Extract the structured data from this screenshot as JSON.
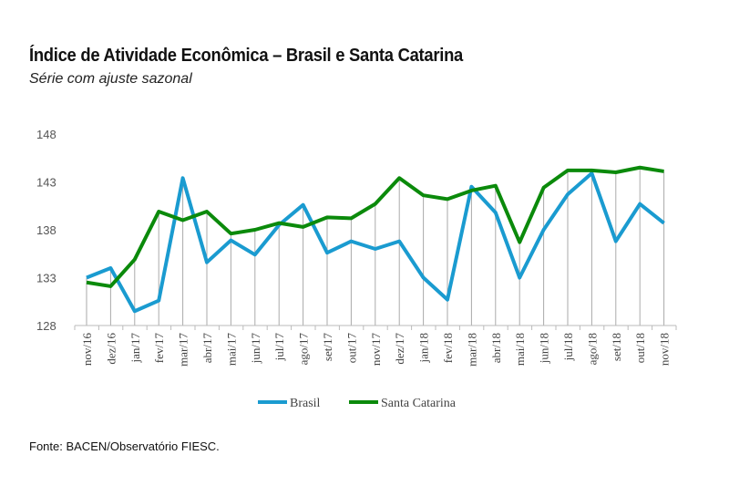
{
  "title": "Índice de Atividade Econômica – Brasil e Santa Catarina",
  "subtitle": "Série com ajuste sazonal",
  "footer": "Fonte: BACEN/Observatório FIESC.",
  "chart_data": {
    "type": "line",
    "title": "Índice de Atividade Econômica – Brasil e Santa Catarina",
    "subtitle": "Série com ajuste sazonal",
    "xlabel": "",
    "ylabel": "",
    "ylim": [
      128,
      148
    ],
    "yticks": [
      128,
      133,
      138,
      143,
      148
    ],
    "grid": "vertical drop lines",
    "legend": "bottom",
    "categories": [
      "nov/16",
      "dez/16",
      "jan/17",
      "fev/17",
      "mar/17",
      "abr/17",
      "mai/17",
      "jun/17",
      "jul/17",
      "ago/17",
      "set/17",
      "out/17",
      "nov/17",
      "dez/17",
      "jan/18",
      "fev/18",
      "mar/18",
      "abr/18",
      "mai/18",
      "jun/18",
      "jul/18",
      "ago/18",
      "set/18",
      "out/18",
      "nov/18"
    ],
    "series": [
      {
        "name": "Brasil",
        "color": "#1a9bd0",
        "values": [
          133.0,
          134.0,
          129.5,
          130.6,
          143.4,
          134.6,
          136.9,
          135.4,
          138.5,
          140.6,
          135.6,
          136.8,
          136.0,
          136.8,
          133.0,
          130.7,
          142.5,
          139.8,
          133.0,
          138.0,
          141.7,
          143.9,
          136.8,
          140.7,
          138.7
        ]
      },
      {
        "name": "Santa Catarina",
        "color": "#0b8a0b",
        "values": [
          132.5,
          132.1,
          134.9,
          139.9,
          139.0,
          139.9,
          137.6,
          138.0,
          138.7,
          138.3,
          139.3,
          139.2,
          140.7,
          143.4,
          141.6,
          141.2,
          142.1,
          142.6,
          136.7,
          142.4,
          144.2,
          144.2,
          144.0,
          144.5,
          144.1
        ]
      }
    ]
  }
}
